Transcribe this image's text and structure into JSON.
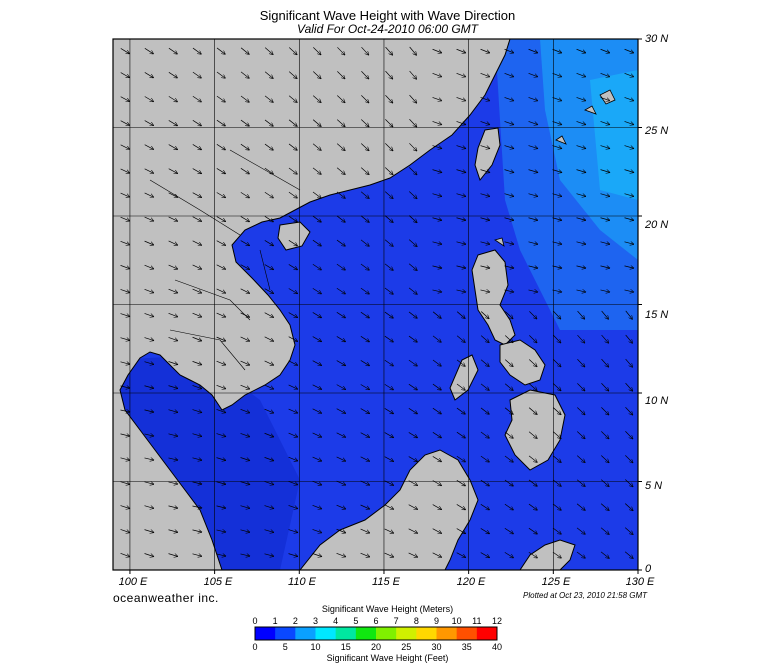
{
  "header": {
    "title": "Significant Wave Height with Wave Direction",
    "subtitle": "Valid For Oct-24-2010 06:00 GMT"
  },
  "map": {
    "lat_labels": [
      "30 N",
      "25 N",
      "20 N",
      "15 N",
      "10 N",
      "5 N",
      "0"
    ],
    "lon_labels": [
      "100 E",
      "105 E",
      "110 E",
      "115 E",
      "120 E",
      "125 E",
      "130 E"
    ],
    "lat_range": [
      0,
      30
    ],
    "lon_range": [
      99,
      130
    ],
    "land_color": "#c0c0c0",
    "ocean_color": "#1f3ee6"
  },
  "footer": {
    "brand": "oceanweather inc.",
    "plotted": "Plotted at Oct 23, 2010 21:58 GMT"
  },
  "colorbar": {
    "title_meters": "Significant Wave Height (Meters)",
    "title_feet": "Significant Wave Height (Feet)",
    "meter_ticks": [
      "0",
      "1",
      "2",
      "3",
      "4",
      "5",
      "6",
      "7",
      "8",
      "9",
      "10",
      "11",
      "12"
    ],
    "feet_ticks": [
      "0",
      "5",
      "10",
      "15",
      "20",
      "25",
      "30",
      "35",
      "40"
    ],
    "colors": [
      "#0000ff",
      "#0a48ff",
      "#0aa0ff",
      "#00e8ff",
      "#00e8a0",
      "#10e810",
      "#80f000",
      "#d0f000",
      "#ffd800",
      "#ff9800",
      "#ff5000",
      "#ff0000"
    ]
  }
}
